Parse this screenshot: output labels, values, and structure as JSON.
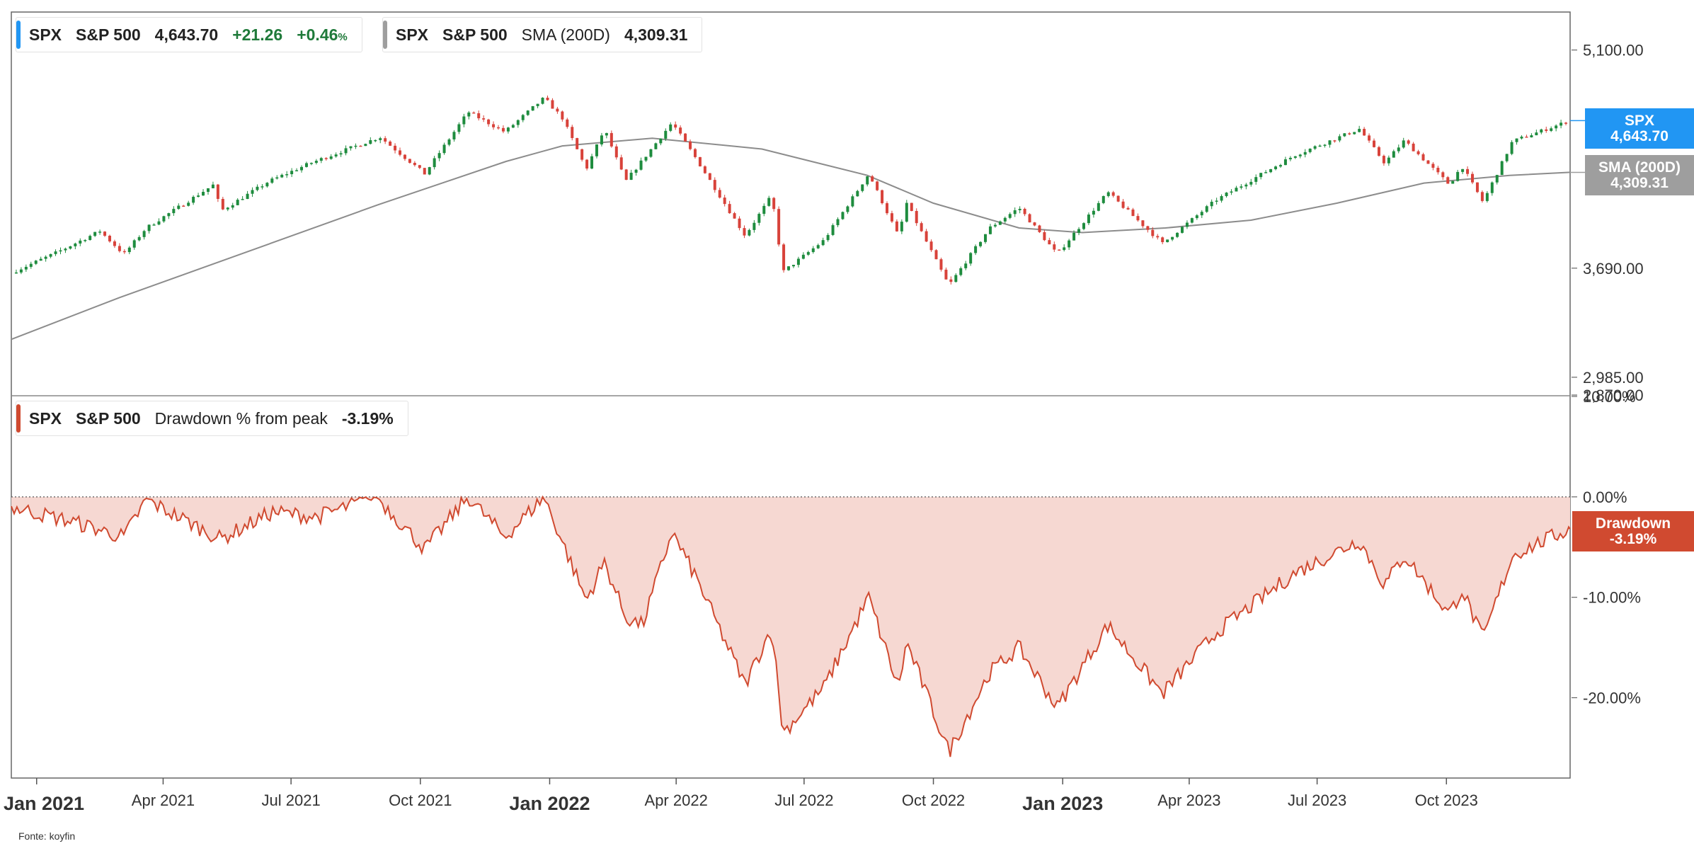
{
  "colors": {
    "spx_accent": "#2196f3",
    "sma_accent": "#9e9e9e",
    "drawdown_accent": "#d04a30",
    "drawdown_fill": "#f6d8d2",
    "up_candle": "#1e8c3e",
    "down_candle": "#d8423a",
    "sma_line": "#8c8c8c"
  },
  "legend_price": {
    "ticker": "SPX",
    "name": "S&P 500",
    "last": "4,643.70",
    "change": "+21.26",
    "change_pct_value": "+0.46",
    "change_pct_unit": "%"
  },
  "legend_sma": {
    "ticker": "SPX",
    "name": "S&P 500",
    "indicator": "SMA (200D)",
    "value": "4,309.31"
  },
  "legend_dd": {
    "ticker": "SPX",
    "name": "S&P 500",
    "indicator": "Drawdown % from peak",
    "value": "-3.19%"
  },
  "tags": {
    "spx_title": "SPX",
    "spx_value": "4,643.70",
    "sma_title": "SMA (200D)",
    "sma_value": "4,309.31",
    "dd_title": "Drawdown",
    "dd_value": "-3.19%"
  },
  "source": "Fonte: koyfin",
  "chart_data": [
    {
      "type": "candlestick",
      "series": [
        {
          "name": "S&P 500",
          "last": 4643.7
        },
        {
          "name": "SMA (200D)",
          "last": 4309.31
        }
      ],
      "ylim": [
        2870,
        5350
      ],
      "y_ticks": [
        "5,100.00",
        "3,690.00",
        "2,985.00",
        "2,870.00"
      ],
      "y_tick_values": [
        5100,
        3690,
        2985,
        2870
      ],
      "x_ticks": [
        "Jan 2021",
        "Apr 2021",
        "Jul 2021",
        "Oct 2021",
        "Jan 2022",
        "Apr 2022",
        "Jul 2022",
        "Oct 2022",
        "Jan 2023",
        "Apr 2023",
        "Jul 2023",
        "Oct 2023"
      ],
      "x_tick_major": [
        true,
        false,
        false,
        false,
        true,
        false,
        false,
        false,
        true,
        false,
        false,
        false
      ],
      "x_tick_dates": [
        "2021-01-01",
        "2021-04-01",
        "2021-07-01",
        "2021-10-01",
        "2022-01-01",
        "2022-04-01",
        "2022-07-01",
        "2022-10-01",
        "2023-01-01",
        "2023-04-01",
        "2023-07-01",
        "2023-10-01"
      ],
      "x_range": [
        "2020-12-14",
        "2023-12-28"
      ],
      "price_path": [
        [
          "2020-12-14",
          3660
        ],
        [
          "2021-01-15",
          3790
        ],
        [
          "2021-02-15",
          3930
        ],
        [
          "2021-03-04",
          3780
        ],
        [
          "2021-03-20",
          3950
        ],
        [
          "2021-05-07",
          4230
        ],
        [
          "2021-05-12",
          4060
        ],
        [
          "2021-06-15",
          4250
        ],
        [
          "2021-07-15",
          4370
        ],
        [
          "2021-08-31",
          4530
        ],
        [
          "2021-09-02",
          4540
        ],
        [
          "2021-10-04",
          4300
        ],
        [
          "2021-11-04",
          4700
        ],
        [
          "2021-11-30",
          4570
        ],
        [
          "2021-12-28",
          4790
        ],
        [
          "2022-01-10",
          4660
        ],
        [
          "2022-01-27",
          4330
        ],
        [
          "2022-02-09",
          4590
        ],
        [
          "2022-02-24",
          4250
        ],
        [
          "2022-03-29",
          4630
        ],
        [
          "2022-04-15",
          4400
        ],
        [
          "2022-05-20",
          3900
        ],
        [
          "2022-06-08",
          4160
        ],
        [
          "2022-06-16",
          3666
        ],
        [
          "2022-07-15",
          3870
        ],
        [
          "2022-08-16",
          4300
        ],
        [
          "2022-09-06",
          3900
        ],
        [
          "2022-09-12",
          4110
        ],
        [
          "2022-10-12",
          3577
        ],
        [
          "2022-11-10",
          3950
        ],
        [
          "2022-12-01",
          4080
        ],
        [
          "2022-12-28",
          3780
        ],
        [
          "2023-02-02",
          4180
        ],
        [
          "2023-03-13",
          3850
        ],
        [
          "2023-04-20",
          4130
        ],
        [
          "2023-06-15",
          4420
        ],
        [
          "2023-07-31",
          4590
        ],
        [
          "2023-08-18",
          4370
        ],
        [
          "2023-09-01",
          4515
        ],
        [
          "2023-10-03",
          4230
        ],
        [
          "2023-10-12",
          4350
        ],
        [
          "2023-10-27",
          4117
        ],
        [
          "2023-11-17",
          4510
        ],
        [
          "2023-12-28",
          4643.7
        ]
      ],
      "sma_path": [
        [
          "2020-12-14",
          3230
        ],
        [
          "2021-03-01",
          3500
        ],
        [
          "2021-06-01",
          3800
        ],
        [
          "2021-09-01",
          4100
        ],
        [
          "2021-12-01",
          4380
        ],
        [
          "2022-01-10",
          4480
        ],
        [
          "2022-03-15",
          4530
        ],
        [
          "2022-06-01",
          4460
        ],
        [
          "2022-08-15",
          4290
        ],
        [
          "2022-10-01",
          4110
        ],
        [
          "2022-12-01",
          3950
        ],
        [
          "2023-01-15",
          3920
        ],
        [
          "2023-03-15",
          3950
        ],
        [
          "2023-05-15",
          4000
        ],
        [
          "2023-07-15",
          4110
        ],
        [
          "2023-09-15",
          4240
        ],
        [
          "2023-11-15",
          4290
        ],
        [
          "2023-12-28",
          4309.31
        ]
      ]
    },
    {
      "type": "area",
      "series": [
        {
          "name": "Drawdown % from peak",
          "last": -3.19
        }
      ],
      "ylim": [
        -28,
        10
      ],
      "y_ticks": [
        "10.00%",
        "0.00%",
        "-10.00%",
        "-20.00%"
      ],
      "y_tick_values": [
        10,
        0,
        -10,
        -20
      ],
      "drawdown_path": [
        [
          "2020-12-14",
          -1.0
        ],
        [
          "2021-01-27",
          -2.5
        ],
        [
          "2021-03-04",
          -4.0
        ],
        [
          "2021-03-20",
          -0.3
        ],
        [
          "2021-05-12",
          -4.2
        ],
        [
          "2021-06-18",
          -1.5
        ],
        [
          "2021-07-19",
          -2.0
        ],
        [
          "2021-08-31",
          0
        ],
        [
          "2021-10-04",
          -5.2
        ],
        [
          "2021-11-04",
          0
        ],
        [
          "2021-11-30",
          -4.0
        ],
        [
          "2021-12-28",
          0
        ],
        [
          "2022-01-27",
          -10.3
        ],
        [
          "2022-02-09",
          -6.5
        ],
        [
          "2022-02-24",
          -12.0
        ],
        [
          "2022-03-08",
          -12.8
        ],
        [
          "2022-03-29",
          -3.5
        ],
        [
          "2022-04-15",
          -8.0
        ],
        [
          "2022-05-20",
          -18.7
        ],
        [
          "2022-06-08",
          -13.0
        ],
        [
          "2022-06-16",
          -23.5
        ],
        [
          "2022-07-15",
          -19.0
        ],
        [
          "2022-08-16",
          -10.0
        ],
        [
          "2022-09-06",
          -19.0
        ],
        [
          "2022-09-12",
          -14.5
        ],
        [
          "2022-10-12",
          -25.4
        ],
        [
          "2022-11-10",
          -17.5
        ],
        [
          "2022-12-01",
          -15.0
        ],
        [
          "2022-12-28",
          -21.0
        ],
        [
          "2023-02-02",
          -12.8
        ],
        [
          "2023-03-13",
          -19.6
        ],
        [
          "2023-04-20",
          -13.5
        ],
        [
          "2023-06-15",
          -7.6
        ],
        [
          "2023-07-31",
          -4.3
        ],
        [
          "2023-08-18",
          -8.8
        ],
        [
          "2023-09-01",
          -5.8
        ],
        [
          "2023-10-03",
          -11.7
        ],
        [
          "2023-10-12",
          -9.2
        ],
        [
          "2023-10-27",
          -14.2
        ],
        [
          "2023-11-17",
          -5.8
        ],
        [
          "2023-12-28",
          -3.19
        ]
      ]
    }
  ]
}
